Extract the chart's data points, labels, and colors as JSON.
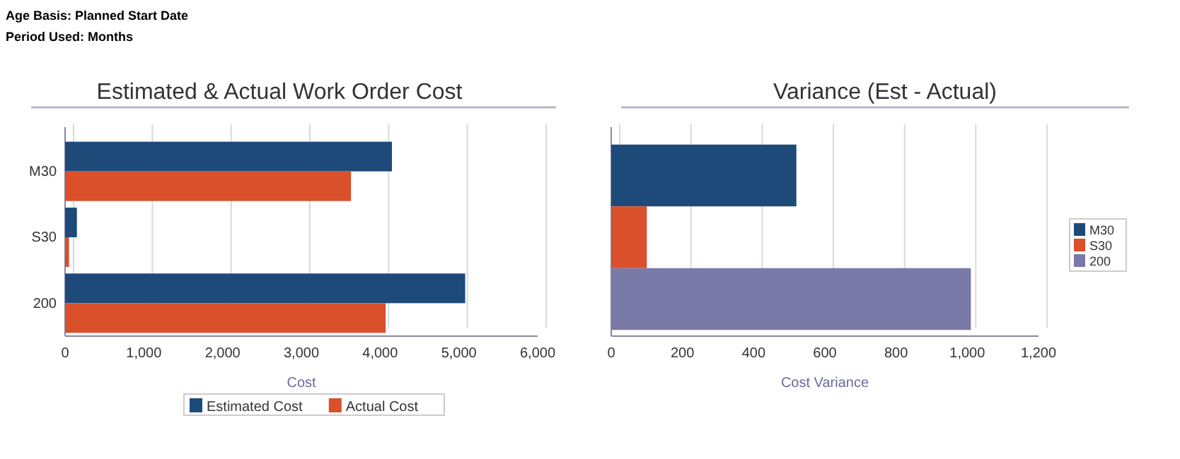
{
  "chart_data": [
    {
      "type": "bar",
      "orientation": "horizontal",
      "title": "Estimated & Actual Work Order Cost",
      "xlabel": "Cost",
      "annotations": [
        "Age Basis: Planned Start Date",
        "Period Used: Months"
      ],
      "categories": [
        "M30",
        "S30",
        "200"
      ],
      "series": [
        {
          "name": "Estimated Cost",
          "color": "#1e4a7a",
          "values": [
            4150,
            150,
            5080
          ]
        },
        {
          "name": "Actual Cost",
          "color": "#d9502a",
          "values": [
            3630,
            50,
            4070
          ]
        }
      ],
      "xlim": [
        0,
        6000
      ],
      "xticks": [
        0,
        {
          "value": 1000,
          "label": "1,000"
        },
        {
          "value": 2000,
          "label": "2,000"
        },
        {
          "value": 3000,
          "label": "3,000"
        },
        {
          "value": 4000,
          "label": "4,000"
        },
        {
          "value": 5000,
          "label": "5,000"
        },
        {
          "value": 6000,
          "label": "6,000"
        }
      ],
      "grid": "x",
      "legend": "bottom"
    },
    {
      "type": "bar",
      "orientation": "horizontal",
      "stacked": true,
      "title": "Variance (Est - Actual)",
      "xlabel": "Cost Variance",
      "categories": [
        null,
        null,
        null
      ],
      "series": [
        {
          "name": "M30",
          "color": "#1e4a7a",
          "values": [
            520,
            null,
            null
          ]
        },
        {
          "name": "S30",
          "color": "#d9502a",
          "values": [
            null,
            100,
            null
          ]
        },
        {
          "name": "200",
          "color": "#7a7aa8",
          "values": [
            null,
            null,
            1010
          ]
        }
      ],
      "xlim": [
        0,
        1200
      ],
      "xticks": [
        0,
        200,
        400,
        600,
        800,
        {
          "value": 1000,
          "label": "1,000"
        },
        {
          "value": 1200,
          "label": "1,200"
        }
      ],
      "grid": "x",
      "legend": "right"
    }
  ]
}
